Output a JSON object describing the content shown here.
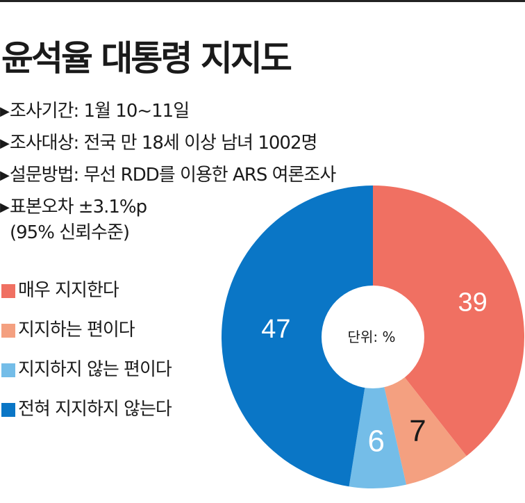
{
  "title": "윤석율 대통령 지지도",
  "info": [
    "조사기간: 1월 10~11일",
    "조사대상: 전국 만 18세 이상 남녀 1002명",
    "설문방법: 무선 RDD를 이용한 ARS 여론조사",
    "표본오차 ±3.1%p"
  ],
  "info_sub": "(95% 신뢰수준)",
  "unit_label": "단위: %",
  "chart_data": {
    "type": "pie",
    "categories": [
      "매우 지지한다",
      "지지하는 편이다",
      "지지하지 않는 편이다",
      "전혀 지지하지 않는다"
    ],
    "values": [
      39,
      7,
      6,
      47
    ],
    "value_labels": [
      "39",
      "7",
      "6",
      "47"
    ],
    "colors": [
      "#f07062",
      "#f4a080",
      "#74bde8",
      "#0a76c6"
    ],
    "label_colors": [
      "#ffffff",
      "#1a1a1a",
      "#ffffff",
      "#ffffff"
    ],
    "start": "12 o'clock",
    "direction": "clockwise",
    "donut_hole": true
  }
}
